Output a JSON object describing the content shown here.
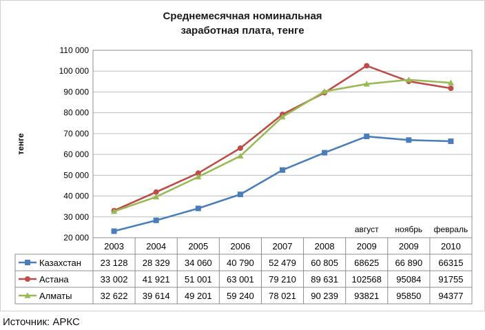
{
  "chart_data": {
    "type": "line",
    "title_lines": [
      "Среднемесячная номинальная",
      "заработная плата, тенге"
    ],
    "ylabel": "тенге",
    "xlabel": "",
    "ylim": [
      20000,
      110000
    ],
    "y_ticks": [
      20000,
      30000,
      40000,
      50000,
      60000,
      70000,
      80000,
      90000,
      100000,
      110000
    ],
    "y_tick_labels": [
      "20 000",
      "30 000",
      "40 000",
      "50 000",
      "60 000",
      "70 000",
      "80 000",
      "90 000",
      "100 000",
      "110 000"
    ],
    "categories": [
      "2003",
      "2004",
      "2005",
      "2006",
      "2007",
      "2008",
      "2009",
      "2009",
      "2010"
    ],
    "category_annotations": [
      "",
      "",
      "",
      "",
      "",
      "",
      "август",
      "ноябрь",
      "февраль"
    ],
    "grid": true,
    "legend": "data-table",
    "series": [
      {
        "name": "Казахстан",
        "color": "#4a7ebb",
        "marker": "square",
        "values": [
          23128,
          28329,
          34060,
          40790,
          52479,
          60805,
          68625,
          66890,
          66315
        ],
        "labels": [
          "23 128",
          "28 329",
          "34 060",
          "40 790",
          "52 479",
          "60 805",
          "68625",
          "66 890",
          "66315"
        ]
      },
      {
        "name": "Астана",
        "color": "#be4b48",
        "marker": "circle",
        "values": [
          33002,
          41921,
          51001,
          63001,
          79210,
          89631,
          102568,
          95084,
          91755
        ],
        "labels": [
          "33 002",
          "41 921",
          "51 001",
          "63 001",
          "79 210",
          "89 631",
          "102568",
          "95084",
          "91755"
        ]
      },
      {
        "name": "Алматы",
        "color": "#98b954",
        "marker": "triangle",
        "values": [
          32622,
          39614,
          49201,
          59240,
          78021,
          90239,
          93821,
          95850,
          94377
        ],
        "labels": [
          "32 622",
          "39 614",
          "49 201",
          "59 240",
          "78 021",
          "90 239",
          "93821",
          "95850",
          "94377"
        ]
      }
    ]
  },
  "source": "Источник: АРКС"
}
